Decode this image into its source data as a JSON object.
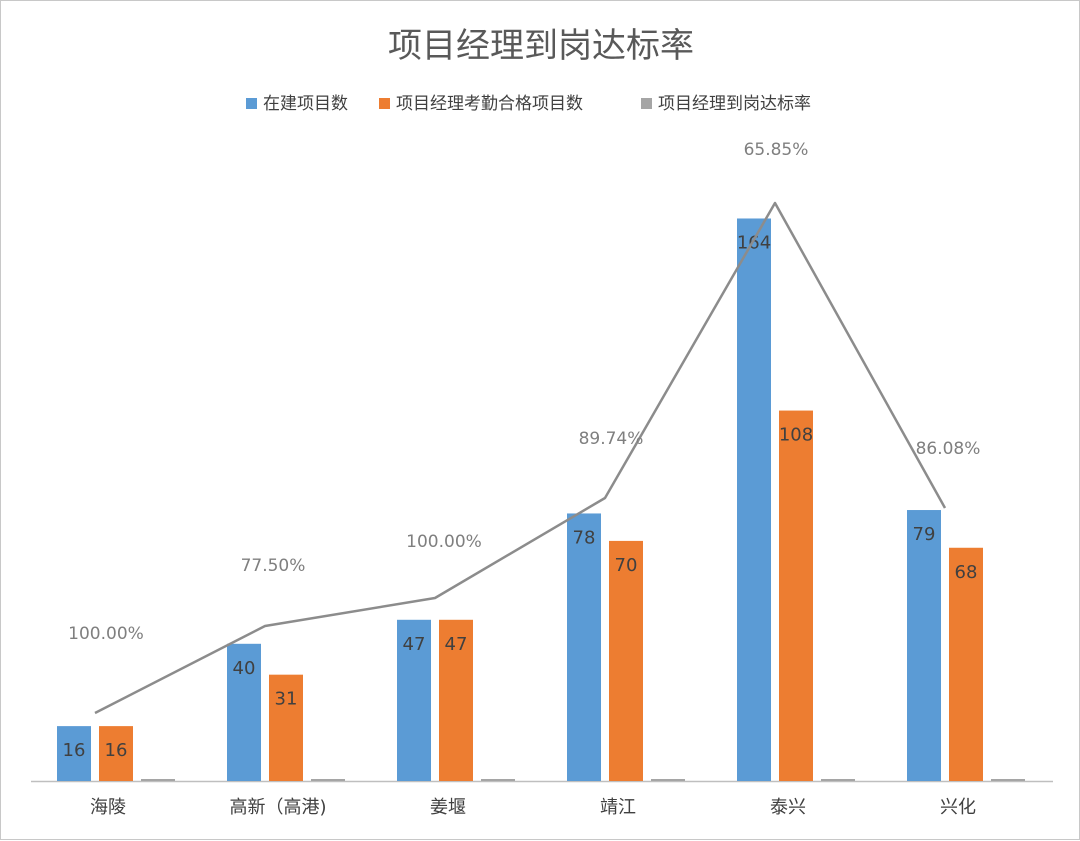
{
  "chart_data": {
    "type": "bar",
    "title": "项目经理到岗达标率",
    "categories": [
      "海陵",
      "高新（高港)",
      "姜堰",
      "靖江",
      "泰兴",
      "兴化"
    ],
    "series": [
      {
        "name": "在建项目数",
        "kind": "bar",
        "color": "#5b9bd5",
        "values": [
          16,
          40,
          47,
          78,
          164,
          79
        ]
      },
      {
        "name": "项目经理考勤合格项目数",
        "kind": "bar",
        "color": "#ed7d31",
        "values": [
          16,
          31,
          47,
          70,
          108,
          68
        ]
      },
      {
        "name": "项目经理到岗达标率",
        "kind": "line",
        "color": "#a5a5a5",
        "values": [
          100.0,
          77.5,
          100.0,
          89.74,
          65.85,
          86.08
        ]
      }
    ],
    "rate_labels": [
      "100.00%",
      "77.50%",
      "100.00%",
      "89.74%",
      "65.85%",
      "86.08%"
    ],
    "legend_position": "top",
    "ylim": [
      0,
      170
    ],
    "grid": false
  }
}
